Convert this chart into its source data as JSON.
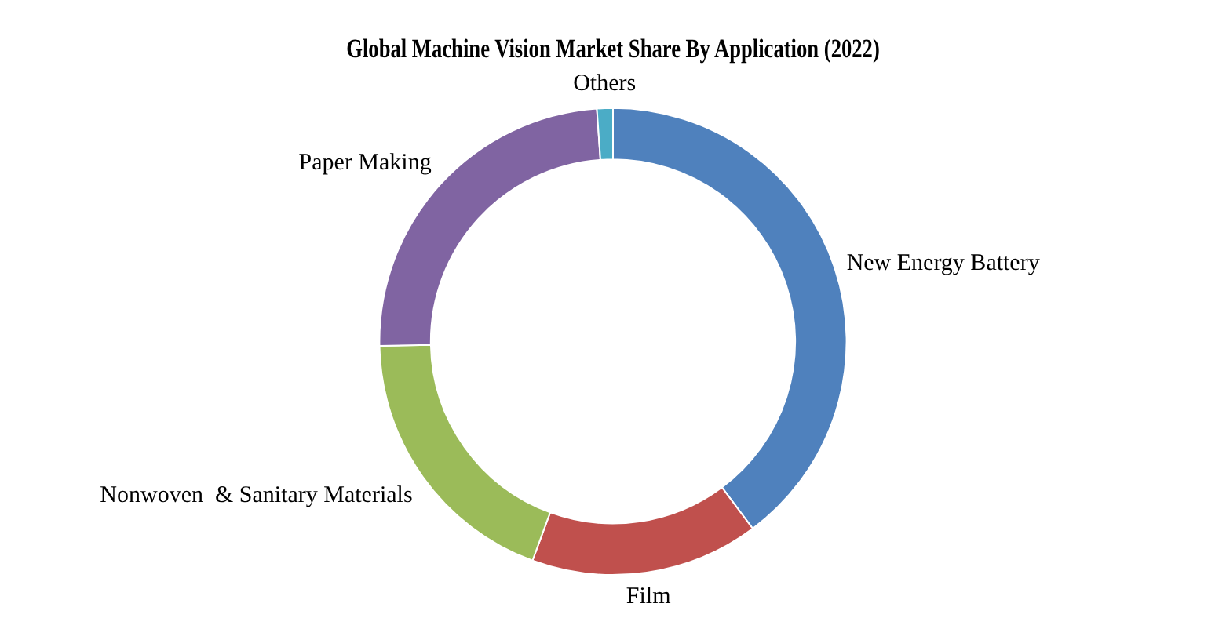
{
  "chart_data": {
    "type": "donut",
    "title": "Global Machine Vision Market Share By Application (2022)",
    "categories": [
      "New Energy Battery",
      "Film",
      "Nonwoven  & Sanitary Materials",
      "Paper Making",
      "Others"
    ],
    "values": [
      39.8,
      15.8,
      19.1,
      24.2,
      1.1
    ],
    "colors": [
      "#4f81bd",
      "#c0504d",
      "#9bbb59",
      "#8064a2",
      "#4bacc6"
    ],
    "legend": false
  }
}
